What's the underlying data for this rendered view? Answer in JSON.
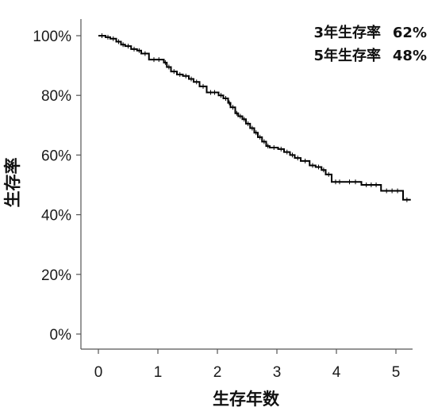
{
  "chart_data": {
    "type": "line",
    "subtype": "kaplan-meier",
    "title": "",
    "xlabel": "生存年数",
    "ylabel": "生存率",
    "xlim": [
      0,
      5.25
    ],
    "ylim": [
      0,
      100
    ],
    "x_ticks": [
      "0",
      "1",
      "2",
      "3",
      "4",
      "5"
    ],
    "y_ticks": [
      "0%",
      "20%",
      "40%",
      "60%",
      "80%",
      "100%"
    ],
    "grid": false,
    "legend": "none",
    "line_color": "#000000",
    "annotations": [
      {
        "label": "3年生存率",
        "value": "62%"
      },
      {
        "label": "5年生存率",
        "value": "48%"
      }
    ],
    "series": [
      {
        "x": [
          0,
          0.12,
          0.2,
          0.3,
          0.38,
          0.45,
          0.55,
          0.65,
          0.72,
          0.85,
          1.1,
          1.15,
          1.22,
          1.32,
          1.42,
          1.52,
          1.6,
          1.7,
          1.82,
          2.02,
          2.1,
          2.18,
          2.22,
          2.3,
          2.35,
          2.42,
          2.48,
          2.55,
          2.62,
          2.68,
          2.75,
          2.82,
          2.88,
          3.02,
          3.12,
          3.22,
          3.3,
          3.4,
          3.55,
          3.65,
          3.75,
          3.82,
          3.92,
          4.12,
          4.42,
          4.75,
          5.12,
          5.25
        ],
        "y": [
          100,
          99.5,
          99,
          98,
          97,
          96.5,
          95.5,
          95,
          94,
          92,
          91,
          89.5,
          88,
          87,
          86.5,
          85.5,
          84.5,
          83,
          81,
          80,
          79,
          77.5,
          76,
          74,
          73,
          72,
          70.5,
          69,
          67.5,
          66,
          64.5,
          63,
          62.5,
          62,
          61,
          60,
          59,
          58,
          56.5,
          56,
          55,
          53.5,
          51,
          51,
          50,
          48,
          45,
          45
        ],
        "censor_marks": true
      }
    ]
  }
}
